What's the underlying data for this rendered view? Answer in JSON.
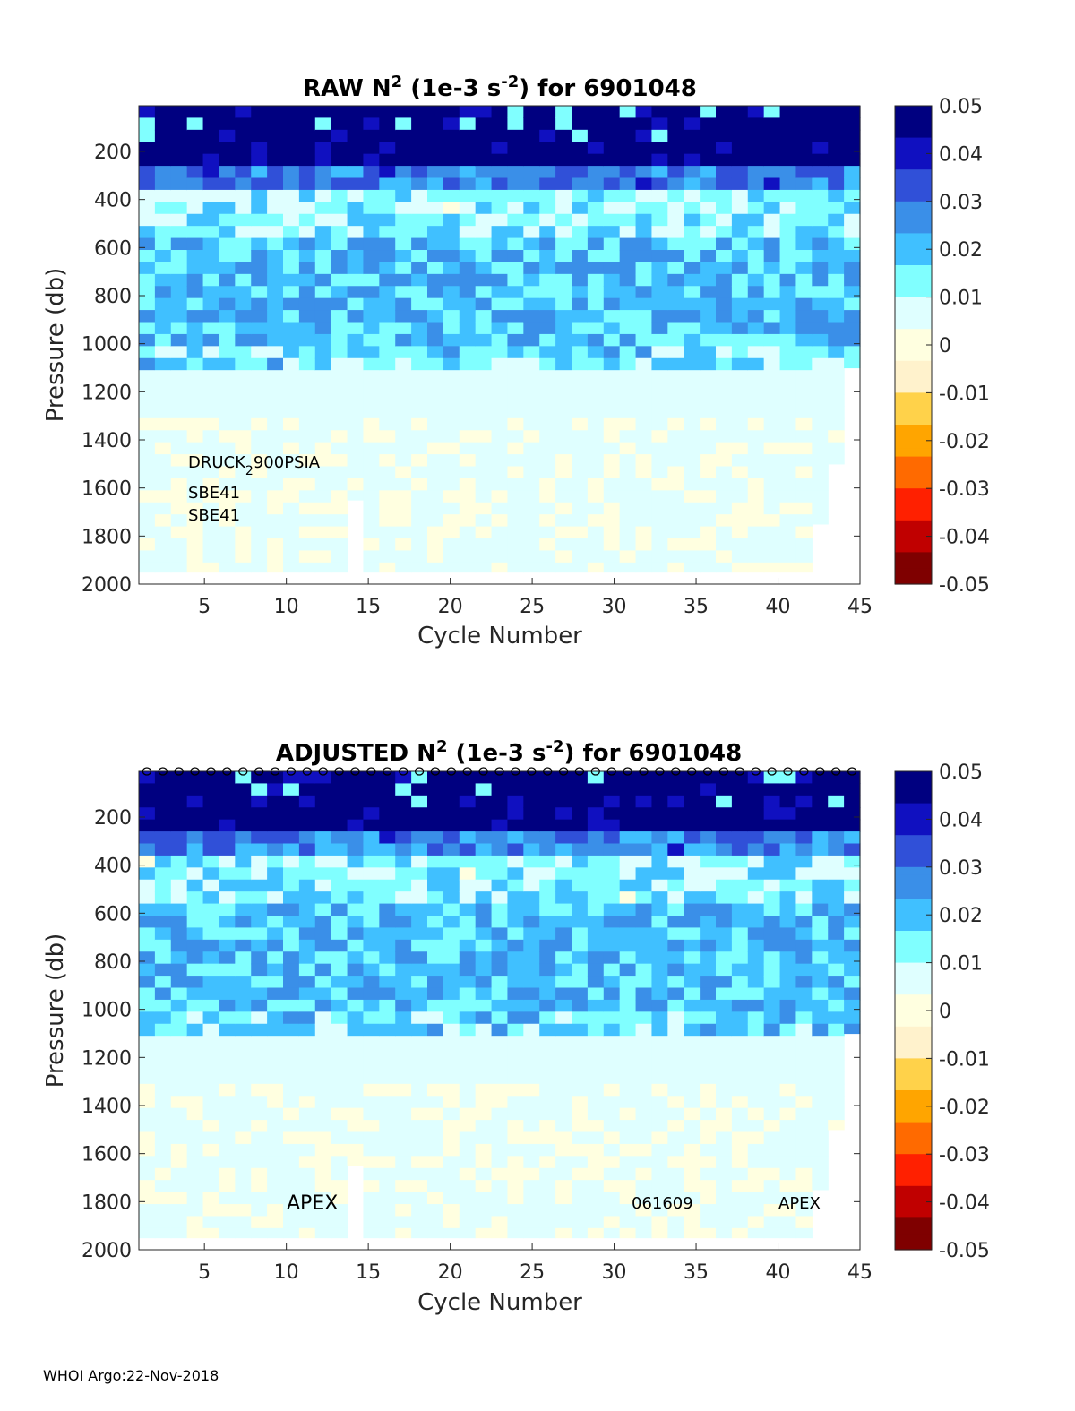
{
  "footer": "WHOI Argo:22-Nov-2018",
  "colormap": [
    "#7f0000",
    "#c00000",
    "#ff2000",
    "#ff6a00",
    "#ffa500",
    "#ffd24a",
    "#fff2cc",
    "#ffffe0",
    "#dfffff",
    "#80ffff",
    "#40c0ff",
    "#3a8fe8",
    "#3050d8",
    "#1010c0",
    "#000080"
  ],
  "chart_data": [
    {
      "type": "heatmap",
      "id": "raw",
      "title_prefix": "RAW N",
      "title_sup1": "2",
      "title_mid": " (1e-3 s",
      "title_sup2": "-2",
      "title_suffix": ") for 6901048",
      "xlabel": "Cycle Number",
      "ylabel": "Pressure (db)",
      "xlim": [
        1,
        45
      ],
      "ylim": [
        10,
        2000
      ],
      "y_reversed": true,
      "xticks": [
        5,
        10,
        15,
        20,
        25,
        30,
        35,
        40,
        45
      ],
      "yticks": [
        200,
        400,
        600,
        800,
        1000,
        1200,
        1400,
        1600,
        1800,
        2000
      ],
      "clim": [
        -0.05,
        0.05
      ],
      "cticks": [
        "0.05",
        "0.04",
        "0.03",
        "0.02",
        "0.01",
        "0",
        "-0.01",
        "-0.02",
        "-0.03",
        "-0.04",
        "-0.05"
      ],
      "annotations": [
        {
          "text": "DRUCK",
          "sub": "2",
          "rest": "900PSIA"
        },
        {
          "text": "SBE41"
        },
        {
          "text": "SBE41"
        }
      ],
      "profile_markers": false
    },
    {
      "type": "heatmap",
      "id": "adjusted",
      "title_prefix": "ADJUSTED N",
      "title_sup1": "2",
      "title_mid": " (1e-3 s",
      "title_sup2": "-2",
      "title_suffix": ") for 6901048",
      "xlabel": "Cycle Number",
      "ylabel": "Pressure (db)",
      "xlim": [
        1,
        45
      ],
      "ylim": [
        10,
        2000
      ],
      "y_reversed": true,
      "xticks": [
        5,
        10,
        15,
        20,
        25,
        30,
        35,
        40,
        45
      ],
      "yticks": [
        200,
        400,
        600,
        800,
        1000,
        1200,
        1400,
        1600,
        1800,
        2000
      ],
      "clim": [
        -0.05,
        0.05
      ],
      "cticks": [
        "0.05",
        "0.04",
        "0.03",
        "0.02",
        "0.01",
        "0",
        "-0.01",
        "-0.02",
        "-0.03",
        "-0.04",
        "-0.05"
      ],
      "annotations": [
        {
          "text": "APEX"
        },
        {
          "text": "061609"
        },
        {
          "text": "APEX"
        }
      ],
      "profile_markers": true
    }
  ],
  "field_model": {
    "layers_db": [
      {
        "top": 10,
        "bottom": 250,
        "value": 0.05
      },
      {
        "top": 250,
        "bottom": 350,
        "value": 0.028
      },
      {
        "top": 350,
        "bottom": 550,
        "value": 0.012
      },
      {
        "top": 550,
        "bottom": 1000,
        "value": 0.02
      },
      {
        "top": 1000,
        "bottom": 1100,
        "value": 0.016
      },
      {
        "top": 1100,
        "bottom": 1300,
        "value": 0.008
      },
      {
        "top": 1300,
        "bottom": 2000,
        "value": 0.004
      }
    ],
    "max_depth_by_cycle": [
      1950,
      1950,
      1950,
      1950,
      1950,
      1950,
      1950,
      1950,
      1950,
      1950,
      1950,
      1950,
      1950,
      1650,
      1950,
      1950,
      1950,
      1950,
      1950,
      1950,
      1950,
      1950,
      1950,
      1950,
      1950,
      1950,
      1950,
      1950,
      1950,
      1950,
      1950,
      1950,
      1950,
      1950,
      1950,
      1950,
      1950,
      1950,
      1950,
      1950,
      1950,
      1950,
      1750,
      1500,
      1100
    ]
  }
}
